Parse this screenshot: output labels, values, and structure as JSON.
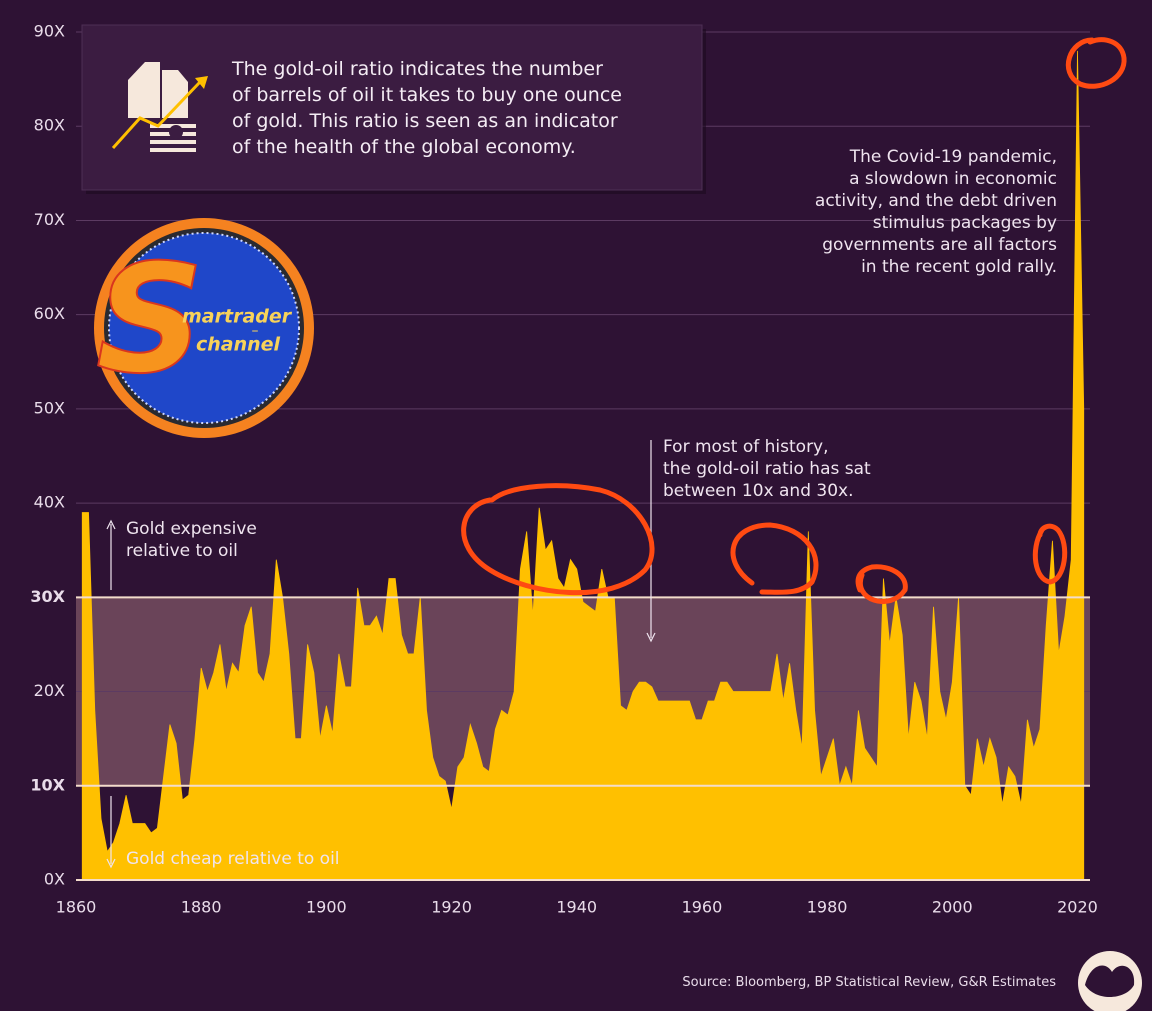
{
  "chart_data": {
    "type": "area",
    "info_text": [
      "The gold-oil ratio indicates the number",
      "of barrels of oil it takes to buy one ounce",
      "of gold. This ratio is seen as an indicator",
      "of the health of the global economy."
    ],
    "annotations": [
      {
        "lines": [
          "The Covid-19 pandemic,",
          "a slowdown in economic",
          "activity, and the debt driven",
          "stimulus packages by",
          "governments are all factors",
          "in the recent gold rally."
        ]
      },
      {
        "lines": [
          "For most of history,",
          "the gold-oil ratio has sat",
          "between 10x and 30x."
        ]
      }
    ],
    "high_label": [
      "Gold expensive",
      "relative to oil"
    ],
    "low_label": "Gold cheap relative to oil",
    "source": "Source: Bloomberg, BP Statistical Review, G&R Estimates",
    "logo": [
      "S",
      "martrader",
      "–",
      "channel"
    ],
    "highlight_range": [
      10,
      30
    ],
    "color": "#ffc000",
    "band_color": "#6a4459",
    "xlim": [
      1860,
      2022
    ],
    "ylim": [
      0,
      90
    ],
    "xticks": [
      1860,
      1880,
      1900,
      1920,
      1940,
      1960,
      1980,
      2000,
      2020
    ],
    "yticks": [
      {
        "value": 0,
        "label": "0X"
      },
      {
        "value": 10,
        "label": "10X"
      },
      {
        "value": 20,
        "label": "20X"
      },
      {
        "value": 30,
        "label": "30X"
      },
      {
        "value": 40,
        "label": "40X"
      },
      {
        "value": 50,
        "label": "50X"
      },
      {
        "value": 60,
        "label": "60X"
      },
      {
        "value": 70,
        "label": "70X"
      },
      {
        "value": 80,
        "label": "80X"
      },
      {
        "value": 90,
        "label": "90X"
      }
    ],
    "grid": true,
    "x": [
      1861,
      1862,
      1863,
      1864,
      1865,
      1866,
      1867,
      1868,
      1869,
      1870,
      1871,
      1872,
      1873,
      1874,
      1875,
      1876,
      1877,
      1878,
      1879,
      1880,
      1881,
      1882,
      1883,
      1884,
      1885,
      1886,
      1887,
      1888,
      1889,
      1890,
      1891,
      1892,
      1893,
      1894,
      1895,
      1896,
      1897,
      1898,
      1899,
      1900,
      1901,
      1902,
      1903,
      1904,
      1905,
      1906,
      1907,
      1908,
      1909,
      1910,
      1911,
      1912,
      1913,
      1914,
      1915,
      1916,
      1917,
      1918,
      1919,
      1920,
      1921,
      1922,
      1923,
      1924,
      1925,
      1926,
      1927,
      1928,
      1929,
      1930,
      1931,
      1932,
      1933,
      1934,
      1935,
      1936,
      1937,
      1938,
      1939,
      1940,
      1941,
      1942,
      1943,
      1944,
      1945,
      1946,
      1947,
      1948,
      1949,
      1950,
      1951,
      1952,
      1953,
      1954,
      1955,
      1956,
      1957,
      1958,
      1959,
      1960,
      1961,
      1962,
      1963,
      1964,
      1965,
      1966,
      1967,
      1968,
      1969,
      1970,
      1971,
      1972,
      1973,
      1974,
      1975,
      1976,
      1977,
      1978,
      1979,
      1980,
      1981,
      1982,
      1983,
      1984,
      1985,
      1986,
      1987,
      1988,
      1989,
      1990,
      1991,
      1992,
      1993,
      1994,
      1995,
      1996,
      1997,
      1998,
      1999,
      2000,
      2001,
      2002,
      2003,
      2004,
      2005,
      2006,
      2007,
      2008,
      2009,
      2010,
      2011,
      2012,
      2013,
      2014,
      2015,
      2016,
      2017,
      2018,
      2019,
      2020,
      2021
    ],
    "values": [
      39,
      39,
      18,
      6.5,
      3,
      4,
      6,
      9,
      6,
      6,
      6,
      5,
      5.5,
      11,
      16.5,
      14.5,
      8.5,
      9,
      15,
      22.5,
      20,
      22,
      25,
      20,
      23,
      22,
      27,
      29,
      22,
      21,
      24,
      34,
      30,
      24,
      15,
      15,
      25,
      22,
      15,
      18.5,
      15.5,
      24,
      20.5,
      20.5,
      31,
      27,
      27,
      28,
      26,
      32,
      32,
      26,
      24,
      24,
      30,
      18,
      13,
      11,
      10.5,
      7.5,
      12,
      13,
      16.5,
      14.5,
      12,
      11.5,
      16,
      18,
      17.5,
      20,
      33,
      37,
      28,
      39.5,
      35,
      36,
      32,
      31,
      34,
      33,
      29.5,
      29,
      28.5,
      33,
      30,
      30,
      18.5,
      18,
      20,
      21,
      21,
      20.5,
      19,
      19,
      19,
      19,
      19,
      19,
      17,
      17,
      19,
      19,
      21,
      21,
      20,
      20,
      20,
      20,
      20,
      20,
      20,
      24,
      19,
      23,
      18,
      14,
      37,
      18,
      11,
      13,
      15,
      10,
      12,
      10,
      18,
      14,
      13,
      12,
      32,
      25,
      30,
      26,
      15,
      21,
      19,
      15,
      29,
      20,
      17,
      21,
      30,
      10,
      9,
      15,
      12,
      15,
      13,
      8,
      12,
      11,
      8,
      17,
      14,
      16,
      27,
      36,
      24,
      28,
      34,
      88,
      50
    ]
  }
}
